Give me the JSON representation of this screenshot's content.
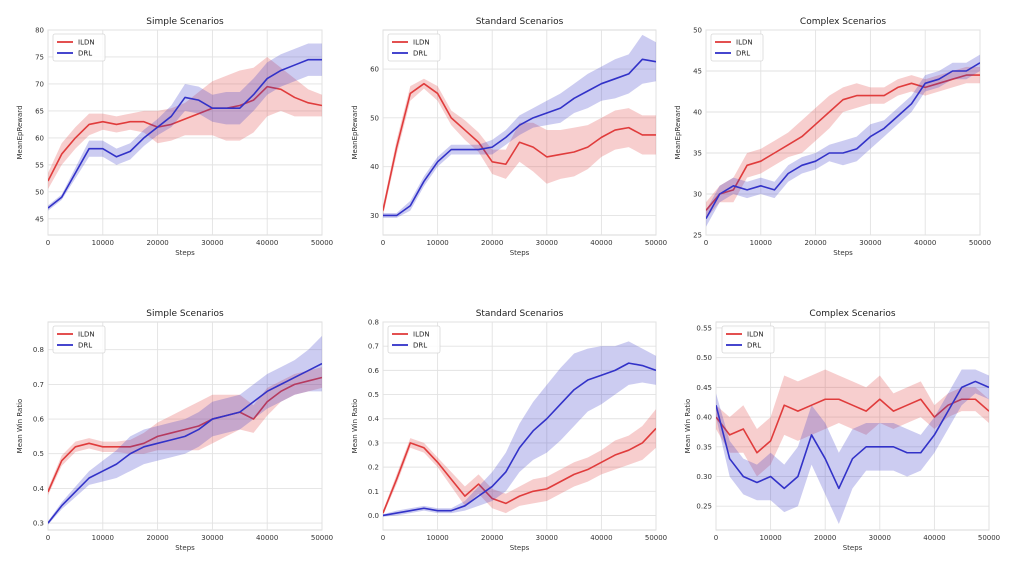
{
  "chart_data": [
    {
      "type": "line",
      "title": "Simple Scenarios",
      "xlabel": "Steps",
      "ylabel": "MeanEpReward",
      "xlim": [
        0,
        50000
      ],
      "ylim": [
        42,
        80
      ],
      "xticks": [
        0,
        10000,
        20000,
        30000,
        40000,
        50000
      ],
      "xtick_labels": [
        "0",
        "10000",
        "20000",
        "30000",
        "40000",
        "50000"
      ],
      "yticks": [
        45,
        50,
        55,
        60,
        65,
        70,
        75,
        80
      ],
      "ytick_labels": [
        "45",
        "50",
        "55",
        "60",
        "65",
        "70",
        "75",
        "80"
      ],
      "grid": true,
      "legend": "top-left",
      "x": [
        0,
        2500,
        5000,
        7500,
        10000,
        12500,
        15000,
        17500,
        20000,
        22500,
        25000,
        27500,
        30000,
        32500,
        35000,
        37500,
        40000,
        42500,
        45000,
        47500,
        50000
      ],
      "series": [
        {
          "name": "ILDN",
          "color": "#e03c3c",
          "values": [
            52,
            57,
            60,
            62.5,
            63,
            62.5,
            63,
            63,
            62,
            62.5,
            63.5,
            64.5,
            65.5,
            65.5,
            66,
            67,
            69.5,
            69,
            67.5,
            66.5,
            66
          ],
          "band": [
            1.5,
            2,
            2,
            2,
            1.5,
            1.5,
            1.5,
            2,
            3,
            3,
            3,
            4,
            5,
            6,
            6.5,
            6,
            5.5,
            4,
            3.5,
            2.5,
            2
          ]
        },
        {
          "name": "DRL",
          "color": "#3232c8",
          "values": [
            47,
            49,
            53.5,
            58,
            58,
            56.5,
            57.5,
            60,
            62,
            64,
            67.5,
            67,
            65.5,
            65.5,
            65.5,
            68,
            71,
            72.5,
            73.5,
            74.5,
            74.5
          ],
          "band": [
            0.5,
            0.5,
            1,
            1.5,
            1.5,
            1.5,
            1.5,
            1.5,
            1.5,
            2,
            2.5,
            2.5,
            2.5,
            3,
            3,
            3,
            3,
            3,
            3,
            3,
            3
          ]
        }
      ]
    },
    {
      "type": "line",
      "title": "Standard Scenarios",
      "xlabel": "Steps",
      "ylabel": "MeanEpReward",
      "xlim": [
        0,
        50000
      ],
      "ylim": [
        26,
        68
      ],
      "xticks": [
        0,
        10000,
        20000,
        30000,
        40000,
        50000
      ],
      "xtick_labels": [
        "0",
        "10000",
        "20000",
        "30000",
        "40000",
        "50000"
      ],
      "yticks": [
        30,
        40,
        50,
        60
      ],
      "ytick_labels": [
        "30",
        "40",
        "50",
        "60"
      ],
      "grid": true,
      "legend": "top-left",
      "x": [
        0,
        2500,
        5000,
        7500,
        10000,
        12500,
        15000,
        17500,
        20000,
        22500,
        25000,
        27500,
        30000,
        32500,
        35000,
        37500,
        40000,
        42500,
        45000,
        47500,
        50000
      ],
      "series": [
        {
          "name": "ILDN",
          "color": "#e03c3c",
          "values": [
            31,
            44,
            55,
            57,
            55,
            50,
            47.5,
            45,
            41,
            40.5,
            45,
            44,
            42,
            42.5,
            43,
            44,
            46,
            47.5,
            48,
            46.5,
            46.5
          ],
          "band": [
            1,
            1.5,
            1.5,
            1,
            1.5,
            1.5,
            2,
            2,
            2.5,
            3,
            4,
            5,
            5.5,
            5,
            5,
            4.5,
            4,
            4,
            4,
            4,
            4
          ]
        },
        {
          "name": "DRL",
          "color": "#3232c8",
          "values": [
            30,
            30,
            32,
            37,
            41,
            43.5,
            43.5,
            43.5,
            44,
            46,
            48.5,
            50,
            51,
            52,
            54,
            55.5,
            57,
            58,
            59,
            62,
            61.5
          ],
          "band": [
            0.5,
            0.5,
            1,
            1,
            1,
            1,
            1,
            1,
            1.5,
            1.5,
            2,
            2,
            2.5,
            3,
            3,
            3.5,
            3.5,
            4,
            4,
            5,
            4
          ]
        }
      ]
    },
    {
      "type": "line",
      "title": "Complex Scenarios",
      "xlabel": "Steps",
      "ylabel": "MeanEpReward",
      "xlim": [
        0,
        50000
      ],
      "ylim": [
        25,
        50
      ],
      "xticks": [
        0,
        10000,
        20000,
        30000,
        40000,
        50000
      ],
      "xtick_labels": [
        "0",
        "10000",
        "20000",
        "30000",
        "40000",
        "50000"
      ],
      "yticks": [
        25,
        30,
        35,
        40,
        45,
        50
      ],
      "ytick_labels": [
        "25",
        "30",
        "35",
        "40",
        "45",
        "50"
      ],
      "grid": true,
      "legend": "top-left",
      "x": [
        0,
        2500,
        5000,
        7500,
        10000,
        12500,
        15000,
        17500,
        20000,
        22500,
        25000,
        27500,
        30000,
        32500,
        35000,
        37500,
        40000,
        42500,
        45000,
        47500,
        50000
      ],
      "series": [
        {
          "name": "ILDN",
          "color": "#e03c3c",
          "values": [
            28,
            30,
            30.5,
            33.5,
            34,
            35,
            36,
            37,
            38.5,
            40,
            41.5,
            42,
            42,
            42,
            43,
            43.5,
            43,
            43.5,
            44,
            44.5,
            44.5
          ],
          "band": [
            1,
            1,
            1.5,
            1.5,
            1.5,
            1.5,
            1.5,
            2,
            2,
            2,
            1.5,
            1.5,
            1,
            1,
            1,
            1,
            1,
            1,
            1,
            1,
            1
          ]
        },
        {
          "name": "DRL",
          "color": "#3232c8",
          "values": [
            27,
            30,
            31,
            30.5,
            31,
            30.5,
            32.5,
            33.5,
            34,
            35,
            35,
            35.5,
            37,
            38,
            39.5,
            41,
            43.5,
            44,
            45,
            45,
            46
          ],
          "band": [
            1,
            1,
            1,
            1,
            1,
            1,
            1,
            1,
            1,
            1,
            1.5,
            1.5,
            1.5,
            1,
            1,
            1,
            1,
            1,
            1,
            1,
            1
          ]
        }
      ]
    },
    {
      "type": "line",
      "title": "Simple Scenarios",
      "xlabel": "Steps",
      "ylabel": "Mean Win Ratio",
      "xlim": [
        0,
        50000
      ],
      "ylim": [
        0.28,
        0.88
      ],
      "xticks": [
        0,
        10000,
        20000,
        30000,
        40000,
        50000
      ],
      "xtick_labels": [
        "0",
        "10000",
        "20000",
        "30000",
        "40000",
        "50000"
      ],
      "yticks": [
        0.3,
        0.4,
        0.5,
        0.6,
        0.7,
        0.8
      ],
      "ytick_labels": [
        "0.3",
        "0.4",
        "0.5",
        "0.6",
        "0.7",
        "0.8"
      ],
      "grid": true,
      "legend": "top-left",
      "x": [
        0,
        2500,
        5000,
        7500,
        10000,
        12500,
        15000,
        17500,
        20000,
        22500,
        25000,
        27500,
        30000,
        32500,
        35000,
        37500,
        40000,
        42500,
        45000,
        47500,
        50000
      ],
      "series": [
        {
          "name": "ILDN",
          "color": "#e03c3c",
          "values": [
            0.39,
            0.48,
            0.52,
            0.53,
            0.52,
            0.52,
            0.52,
            0.53,
            0.55,
            0.56,
            0.57,
            0.58,
            0.6,
            0.61,
            0.62,
            0.6,
            0.65,
            0.68,
            0.7,
            0.71,
            0.72
          ],
          "band": [
            0.01,
            0.015,
            0.015,
            0.015,
            0.015,
            0.015,
            0.02,
            0.03,
            0.04,
            0.05,
            0.06,
            0.07,
            0.07,
            0.06,
            0.05,
            0.04,
            0.04,
            0.03,
            0.03,
            0.03,
            0.03
          ]
        },
        {
          "name": "DRL",
          "color": "#3232c8",
          "values": [
            0.3,
            0.35,
            0.39,
            0.43,
            0.45,
            0.47,
            0.5,
            0.52,
            0.53,
            0.54,
            0.55,
            0.57,
            0.6,
            0.61,
            0.62,
            0.65,
            0.68,
            0.7,
            0.72,
            0.74,
            0.76
          ],
          "band": [
            0.005,
            0.01,
            0.015,
            0.02,
            0.03,
            0.04,
            0.05,
            0.05,
            0.05,
            0.05,
            0.05,
            0.05,
            0.05,
            0.05,
            0.05,
            0.05,
            0.05,
            0.05,
            0.05,
            0.06,
            0.08
          ]
        }
      ]
    },
    {
      "type": "line",
      "title": "Standard Scenarios",
      "xlabel": "Steps",
      "ylabel": "Mean Win Ratio",
      "xlim": [
        0,
        50000
      ],
      "ylim": [
        -0.06,
        0.8
      ],
      "xticks": [
        0,
        10000,
        20000,
        30000,
        40000,
        50000
      ],
      "xtick_labels": [
        "0",
        "10000",
        "20000",
        "30000",
        "40000",
        "50000"
      ],
      "yticks": [
        0.0,
        0.1,
        0.2,
        0.3,
        0.4,
        0.5,
        0.6,
        0.7,
        0.8
      ],
      "ytick_labels": [
        "0.0",
        "0.1",
        "0.2",
        "0.3",
        "0.4",
        "0.5",
        "0.6",
        "0.7",
        "0.8"
      ],
      "grid": true,
      "legend": "top-left",
      "x": [
        0,
        2500,
        5000,
        7500,
        10000,
        12500,
        15000,
        17500,
        20000,
        22500,
        25000,
        27500,
        30000,
        32500,
        35000,
        37500,
        40000,
        42500,
        45000,
        47500,
        50000
      ],
      "series": [
        {
          "name": "ILDN",
          "color": "#e03c3c",
          "values": [
            0.01,
            0.15,
            0.3,
            0.28,
            0.22,
            0.15,
            0.08,
            0.13,
            0.07,
            0.05,
            0.08,
            0.1,
            0.11,
            0.14,
            0.17,
            0.19,
            0.22,
            0.25,
            0.27,
            0.3,
            0.36
          ],
          "band": [
            0.01,
            0.02,
            0.02,
            0.02,
            0.02,
            0.03,
            0.04,
            0.04,
            0.04,
            0.04,
            0.04,
            0.05,
            0.05,
            0.05,
            0.05,
            0.05,
            0.05,
            0.06,
            0.06,
            0.07,
            0.08
          ]
        },
        {
          "name": "DRL",
          "color": "#3232c8",
          "values": [
            0.0,
            0.01,
            0.02,
            0.03,
            0.02,
            0.02,
            0.04,
            0.08,
            0.12,
            0.18,
            0.28,
            0.35,
            0.4,
            0.46,
            0.52,
            0.56,
            0.58,
            0.6,
            0.63,
            0.62,
            0.6
          ],
          "band": [
            0.005,
            0.01,
            0.01,
            0.01,
            0.01,
            0.01,
            0.02,
            0.04,
            0.06,
            0.08,
            0.1,
            0.12,
            0.14,
            0.15,
            0.15,
            0.13,
            0.12,
            0.1,
            0.09,
            0.07,
            0.06
          ]
        }
      ]
    },
    {
      "type": "line",
      "title": "Complex Scenarios",
      "xlabel": "Steps",
      "ylabel": "Mean Win Ratio",
      "xlim": [
        0,
        50000
      ],
      "ylim": [
        0.21,
        0.56
      ],
      "xticks": [
        0,
        10000,
        20000,
        30000,
        40000,
        50000
      ],
      "xtick_labels": [
        "0",
        "10000",
        "20000",
        "30000",
        "40000",
        "50000"
      ],
      "yticks": [
        0.25,
        0.3,
        0.35,
        0.4,
        0.45,
        0.5,
        0.55
      ],
      "ytick_labels": [
        "0.25",
        "0.30",
        "0.35",
        "0.40",
        "0.45",
        "0.50",
        "0.55"
      ],
      "grid": true,
      "legend": "top-center",
      "x": [
        0,
        2500,
        5000,
        7500,
        10000,
        12500,
        15000,
        17500,
        20000,
        22500,
        25000,
        27500,
        30000,
        32500,
        35000,
        37500,
        40000,
        42500,
        45000,
        47500,
        50000
      ],
      "series": [
        {
          "name": "ILDN",
          "color": "#e03c3c",
          "values": [
            0.4,
            0.37,
            0.38,
            0.34,
            0.36,
            0.42,
            0.41,
            0.42,
            0.43,
            0.43,
            0.42,
            0.41,
            0.43,
            0.41,
            0.42,
            0.43,
            0.4,
            0.42,
            0.43,
            0.43,
            0.41
          ],
          "band": [
            0.02,
            0.03,
            0.04,
            0.04,
            0.04,
            0.05,
            0.05,
            0.05,
            0.05,
            0.04,
            0.04,
            0.04,
            0.04,
            0.03,
            0.03,
            0.03,
            0.02,
            0.02,
            0.02,
            0.02,
            0.02
          ]
        },
        {
          "name": "DRL",
          "color": "#3232c8",
          "values": [
            0.42,
            0.33,
            0.3,
            0.29,
            0.3,
            0.28,
            0.3,
            0.37,
            0.33,
            0.28,
            0.33,
            0.35,
            0.35,
            0.35,
            0.34,
            0.34,
            0.37,
            0.41,
            0.45,
            0.46,
            0.45
          ],
          "band": [
            0.02,
            0.03,
            0.03,
            0.03,
            0.04,
            0.04,
            0.05,
            0.05,
            0.06,
            0.06,
            0.05,
            0.04,
            0.04,
            0.04,
            0.04,
            0.03,
            0.03,
            0.03,
            0.03,
            0.02,
            0.02
          ]
        }
      ]
    }
  ]
}
